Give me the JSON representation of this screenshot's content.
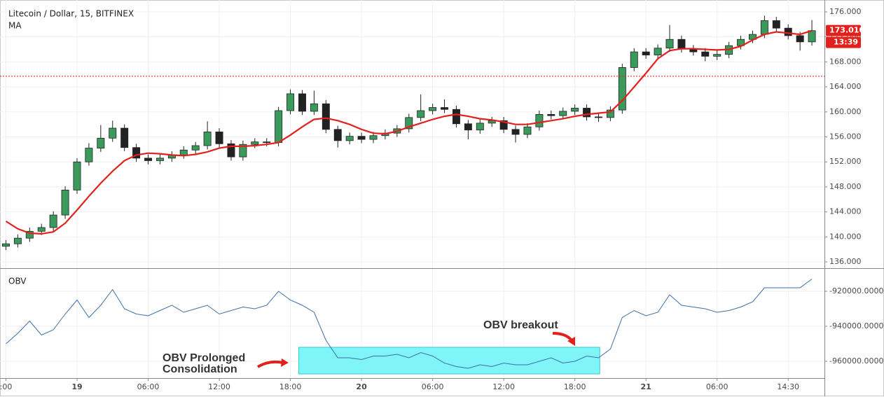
{
  "chart_data": [
    {
      "type": "candlestick",
      "title": "Litecoin / Dollar, 15, BITFINEX",
      "indicator": "MA",
      "x": [
        -6,
        -5,
        -4,
        -3,
        -2,
        -1,
        0,
        1,
        2,
        3,
        4,
        5,
        6,
        7,
        8,
        9,
        10,
        11,
        12,
        13,
        14,
        15,
        16,
        17,
        18,
        19,
        20,
        21,
        22,
        23,
        24,
        25,
        26,
        27,
        28,
        29,
        30,
        31,
        32,
        33,
        34,
        35,
        36,
        37,
        38,
        39,
        40,
        41,
        42,
        43,
        44,
        45,
        46,
        47,
        48,
        49,
        50,
        51,
        52,
        53,
        54,
        55,
        56,
        57,
        58,
        59,
        60,
        61,
        62
      ],
      "open": [
        138.5,
        138.9,
        139.8,
        140.9,
        141.5,
        143.5,
        147.5,
        152,
        154.2,
        155.8,
        157.4,
        154.3,
        152.6,
        152.2,
        152.6,
        153.1,
        153.9,
        154.6,
        156.8,
        154.9,
        152.8,
        154.8,
        155.2,
        155.1,
        160.2,
        162.9,
        160.1,
        161.3,
        157.2,
        155.4,
        156.1,
        155.6,
        156.2,
        156.6,
        157.3,
        159.1,
        160.2,
        160.7,
        160.4,
        158.1,
        157.1,
        158.2,
        158.6,
        157.2,
        156.4,
        157.6,
        159.6,
        159.4,
        160.1,
        160.6,
        159.2,
        159.1,
        160.3,
        167.1,
        169.6,
        169.1,
        170.2,
        171.6,
        170.1,
        169.6,
        168.9,
        169.2,
        170.6,
        171.6,
        172.4,
        174.6,
        173.4,
        172.2,
        171.2
      ],
      "high": [
        139.5,
        140.4,
        141.5,
        142.1,
        144.1,
        148.1,
        152.6,
        155,
        157.9,
        158.6,
        158,
        154.9,
        153.2,
        153.2,
        153.7,
        154.5,
        155.2,
        158.5,
        157.4,
        155.5,
        155.4,
        155.8,
        155.8,
        160.8,
        163.6,
        163.5,
        163.4,
        161.9,
        157.8,
        156.7,
        156.7,
        156.8,
        157.2,
        157.9,
        159.7,
        162.8,
        161.3,
        162,
        161,
        158.7,
        158.8,
        159.2,
        159.2,
        157.8,
        158.2,
        160.2,
        160.2,
        160.7,
        161.2,
        161.2,
        159.8,
        160.9,
        167.7,
        170.2,
        170.2,
        170.8,
        173.9,
        172.2,
        170.7,
        170.2,
        169.8,
        171.2,
        172.2,
        173,
        175.4,
        175.2,
        174,
        172.8,
        174.7
      ],
      "low": [
        137.9,
        138.3,
        139.2,
        140.3,
        140.9,
        142.9,
        146.9,
        151.4,
        153.6,
        155.2,
        153.7,
        152,
        151.6,
        151.6,
        152,
        152.5,
        153.3,
        154,
        154.3,
        152.2,
        152.2,
        154.2,
        154.5,
        154.5,
        159.6,
        159.5,
        159.5,
        156.6,
        154.3,
        154.8,
        155,
        155,
        155.6,
        156,
        156.7,
        158.5,
        159.6,
        159.8,
        157.5,
        155.6,
        156.5,
        157.6,
        156.6,
        155.1,
        155.8,
        157,
        158.8,
        158.8,
        159.5,
        158.6,
        158.4,
        158.5,
        159.7,
        166.5,
        168.5,
        168.5,
        169.6,
        169.5,
        169,
        168.1,
        168.3,
        168.6,
        170,
        171,
        171.8,
        172.8,
        171.6,
        169.8,
        170.6
      ],
      "close": [
        138.9,
        139.8,
        140.9,
        141.5,
        143.5,
        147.5,
        152,
        154.2,
        155.8,
        157.4,
        154.3,
        152.6,
        152.2,
        152.6,
        153.1,
        153.9,
        154.6,
        156.8,
        154.9,
        152.8,
        154.8,
        155.2,
        155.1,
        160.2,
        162.9,
        160.1,
        161.3,
        157.2,
        155.4,
        156.1,
        155.6,
        156.2,
        156.6,
        157.3,
        159.1,
        160.2,
        160.7,
        160.4,
        158.1,
        157.1,
        158.2,
        158.6,
        157.2,
        156.4,
        157.6,
        159.6,
        159.4,
        160.1,
        160.6,
        159.2,
        159.1,
        160.3,
        167.1,
        169.6,
        169.1,
        170.2,
        171.6,
        170.1,
        169.6,
        168.9,
        169.2,
        170.6,
        171.6,
        172.4,
        174.6,
        173.4,
        172.2,
        171.2,
        173
      ],
      "up_color": "#3a9a5b",
      "down_color": "#222222",
      "series": [
        {
          "name": "MA",
          "color": "#e3211c",
          "values": [
            142.5,
            141.3,
            140.6,
            140.5,
            140.8,
            142.2,
            144.3,
            146.5,
            148.6,
            150.5,
            152.2,
            153.1,
            153.4,
            153.3,
            153.1,
            153,
            153.2,
            153.6,
            154.2,
            154.5,
            154.5,
            154.6,
            154.8,
            155.1,
            156.3,
            157.6,
            158.8,
            159,
            158.6,
            158,
            157.2,
            156.6,
            156.5,
            156.9,
            157.6,
            158.2,
            158.8,
            159.3,
            159.6,
            159.3,
            158.9,
            158.7,
            158.4,
            158,
            158,
            158.3,
            158.6,
            158.9,
            159.3,
            159.6,
            159.8,
            160,
            161.8,
            164,
            166.2,
            168.5,
            169.8,
            170.1,
            170.1,
            170,
            169.9,
            170,
            170.5,
            171.5,
            172.4,
            172.8,
            172.6,
            172.4,
            173
          ]
        }
      ],
      "reference_line": 165.7,
      "last_price": {
        "value": 173.01,
        "label": "173.010"
      },
      "countdown": "13:39",
      "xlim": [
        -6.5,
        63.06
      ],
      "ylim": [
        135,
        177.9
      ],
      "yticks": [
        {
          "value": 136,
          "label": "136.000"
        },
        {
          "value": 140,
          "label": "140.000"
        },
        {
          "value": 144,
          "label": "144.000"
        },
        {
          "value": 148,
          "label": "148.000"
        },
        {
          "value": 152,
          "label": "152.000"
        },
        {
          "value": 156,
          "label": "156.000"
        },
        {
          "value": 160,
          "label": "160.000"
        },
        {
          "value": 164,
          "label": "164.000"
        },
        {
          "value": 168,
          "label": "168.000"
        },
        {
          "value": 172,
          "label": "172.000"
        },
        {
          "value": 176,
          "label": "176.000"
        }
      ],
      "grid": true
    },
    {
      "type": "line",
      "title": "OBV",
      "series": [
        {
          "name": "OBV",
          "color": "#3d6fa8",
          "values": [
            -950000,
            -944000,
            -937000,
            -945000,
            -942000,
            -933000,
            -925000,
            -935000,
            -928000,
            -919000,
            -930000,
            -933000,
            -934000,
            -931000,
            -928000,
            -932000,
            -930000,
            -928000,
            -933000,
            -931000,
            -929000,
            -930000,
            -928000,
            -920000,
            -925000,
            -928000,
            -932000,
            -948000,
            -958000,
            -958000,
            -959000,
            -957000,
            -957000,
            -956000,
            -958000,
            -955000,
            -957000,
            -961000,
            -963000,
            -964000,
            -962000,
            -963000,
            -961000,
            -962000,
            -962000,
            -960000,
            -958000,
            -961000,
            -960000,
            -957000,
            -958000,
            -953000,
            -935000,
            -931000,
            -934000,
            -932000,
            -922000,
            -928000,
            -929000,
            -930000,
            -932000,
            -931000,
            -929000,
            -926000,
            -918000,
            -918000,
            -918000,
            -918000,
            -913000
          ]
        }
      ],
      "highlight": {
        "x": [
          18.7,
          44.1
        ],
        "y": [
          -952000,
          -967200
        ],
        "color": "#7ff5f8"
      },
      "annotations": [
        {
          "lines": [
            "OBV Prolonged",
            "Consolidation"
          ]
        },
        {
          "lines": [
            "OBV breakout"
          ]
        }
      ],
      "ylim": [
        -969600,
        -907200
      ],
      "yticks": [
        {
          "value": -960000,
          "label": "-960000.0000"
        },
        {
          "value": -940000,
          "label": "-940000.0000"
        },
        {
          "value": -920000,
          "label": "-920000.0000"
        }
      ],
      "xticks": [
        {
          "value": -6,
          "label": ":00"
        },
        {
          "value": 0,
          "label": "19"
        },
        {
          "value": 6,
          "label": "06:00"
        },
        {
          "value": 12,
          "label": "12:00"
        },
        {
          "value": 18,
          "label": "18:00"
        },
        {
          "value": 24,
          "label": "20"
        },
        {
          "value": 30,
          "label": "06:00"
        },
        {
          "value": 36,
          "label": "12:00"
        },
        {
          "value": 42,
          "label": "18:00"
        },
        {
          "value": 48,
          "label": "21"
        },
        {
          "value": 54,
          "label": "06:00"
        },
        {
          "value": 60,
          "label": "14:30"
        }
      ],
      "grid": true
    }
  ]
}
